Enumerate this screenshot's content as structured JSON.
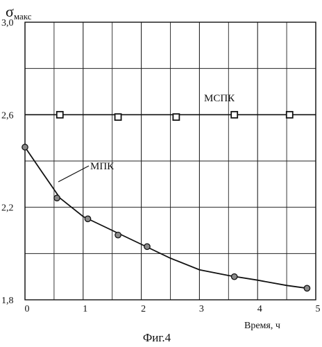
{
  "chart_data": {
    "type": "scatter",
    "ylabel_main": "σ",
    "ylabel_sub": "макс",
    "xlabel": "Время, ч",
    "caption": "Фиг.4",
    "xlim": [
      0,
      5
    ],
    "ylim": [
      1.8,
      3.0
    ],
    "x_ticks": [
      0,
      1,
      2,
      3,
      4,
      5
    ],
    "y_ticks": [
      1.8,
      2.2,
      2.6,
      3.0
    ],
    "x_tick_labels": [
      "0",
      "1",
      "2",
      "3",
      "4",
      "5"
    ],
    "y_tick_labels": [
      "1,8",
      "2,2",
      "2,6",
      "3,0"
    ],
    "grid": true,
    "series": [
      {
        "name": "МСПК",
        "marker": "square",
        "line": "horizontal",
        "line_y": 2.6,
        "points": [
          [
            0.6,
            2.6
          ],
          [
            1.6,
            2.59
          ],
          [
            2.6,
            2.59
          ],
          [
            3.6,
            2.6
          ],
          [
            4.55,
            2.6
          ]
        ]
      },
      {
        "name": "МПК",
        "marker": "circle",
        "line": "curve",
        "points": [
          [
            0.0,
            2.46
          ],
          [
            0.55,
            2.24
          ],
          [
            1.08,
            2.15
          ],
          [
            1.6,
            2.08
          ],
          [
            2.1,
            2.03
          ],
          [
            3.6,
            1.9
          ],
          [
            4.85,
            1.85
          ]
        ],
        "curve": [
          [
            0.0,
            2.46
          ],
          [
            0.3,
            2.35
          ],
          [
            0.6,
            2.24
          ],
          [
            1.0,
            2.16
          ],
          [
            1.5,
            2.1
          ],
          [
            2.0,
            2.04
          ],
          [
            2.5,
            1.98
          ],
          [
            3.0,
            1.93
          ],
          [
            3.5,
            1.905
          ],
          [
            4.0,
            1.885
          ],
          [
            4.5,
            1.862
          ],
          [
            4.85,
            1.85
          ]
        ]
      }
    ]
  }
}
